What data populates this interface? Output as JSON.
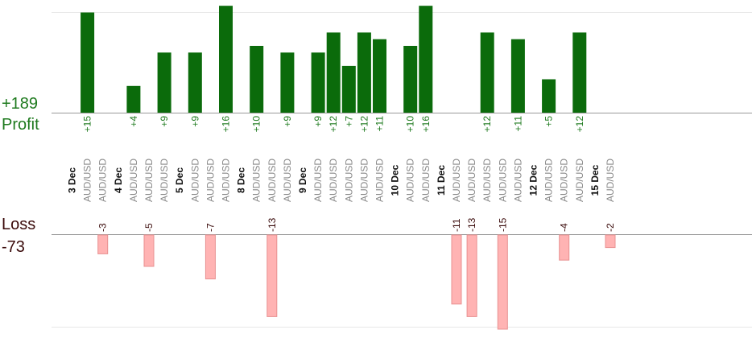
{
  "chart_data": {
    "type": "bar",
    "profit_total": "+189",
    "profit_label": "Profit",
    "loss_label": "Loss",
    "loss_total": "-73",
    "colors": {
      "profit": "#0b6b0b",
      "profit_text": "#1e7a1e",
      "loss": "#ffb3b3",
      "loss_edge": "#e89090",
      "loss_text": "#3a0a0a",
      "pair_text": "#888888"
    },
    "days": [
      {
        "date": "3 Dec",
        "trades": [
          {
            "pair": "AUD/USD",
            "value": 15
          },
          {
            "pair": "AUD/USD",
            "value": -3
          }
        ]
      },
      {
        "date": "4 Dec",
        "trades": [
          {
            "pair": "AUD/USD",
            "value": 4
          },
          {
            "pair": "AUD/USD",
            "value": -5
          },
          {
            "pair": "AUD/USD",
            "value": 9
          }
        ]
      },
      {
        "date": "5 Dec",
        "trades": [
          {
            "pair": "AUD/USD",
            "value": 9
          },
          {
            "pair": "AUD/USD",
            "value": -7
          },
          {
            "pair": "AUD/USD",
            "value": 16
          }
        ]
      },
      {
        "date": "8 Dec",
        "trades": [
          {
            "pair": "AUD/USD",
            "value": 10
          },
          {
            "pair": "AUD/USD",
            "value": -13
          },
          {
            "pair": "AUD/USD",
            "value": 9
          }
        ]
      },
      {
        "date": "9 Dec",
        "trades": [
          {
            "pair": "AUD/USD",
            "value": 9
          },
          {
            "pair": "AUD/USD",
            "value": 12
          },
          {
            "pair": "AUD/USD",
            "value": 7
          },
          {
            "pair": "AUD/USD",
            "value": 12
          },
          {
            "pair": "AUD/USD",
            "value": 11
          }
        ]
      },
      {
        "date": "10 Dec",
        "trades": [
          {
            "pair": "AUD/USD",
            "value": 10
          },
          {
            "pair": "AUD/USD",
            "value": 16
          }
        ]
      },
      {
        "date": "11 Dec",
        "trades": [
          {
            "pair": "AUD/USD",
            "value": -11
          },
          {
            "pair": "AUD/USD",
            "value": -13
          },
          {
            "pair": "AUD/USD",
            "value": 12
          },
          {
            "pair": "AUD/USD",
            "value": -15
          },
          {
            "pair": "AUD/USD",
            "value": 11
          }
        ]
      },
      {
        "date": "12 Dec",
        "trades": [
          {
            "pair": "AUD/USD",
            "value": 5
          },
          {
            "pair": "AUD/USD",
            "value": -4
          },
          {
            "pair": "AUD/USD",
            "value": 12
          }
        ]
      },
      {
        "date": "15 Dec",
        "trades": [
          {
            "pair": "AUD/USD",
            "value": -2
          }
        ]
      }
    ]
  }
}
